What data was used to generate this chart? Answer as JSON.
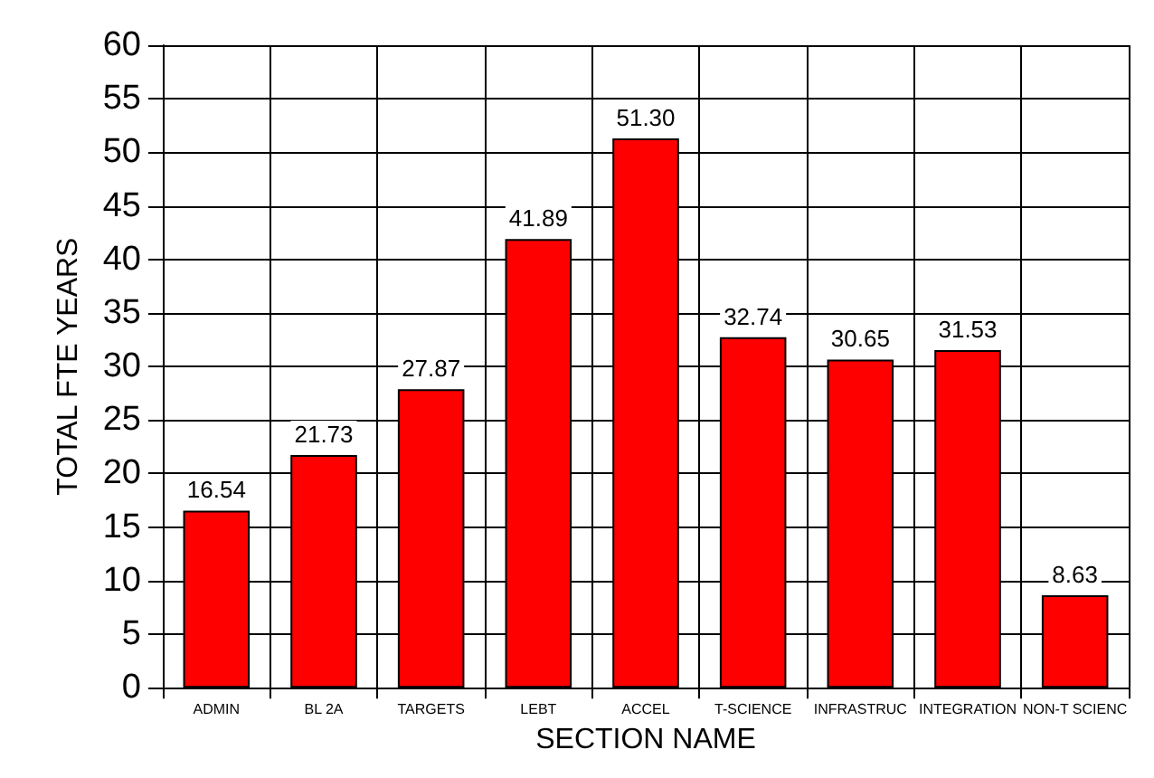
{
  "chart_data": {
    "type": "bar",
    "xlabel": "SECTION NAME",
    "ylabel": "TOTAL FTE YEARS",
    "categories": [
      "ADMIN",
      "BL 2A",
      "TARGETS",
      "LEBT",
      "ACCEL",
      "T-SCIENCE",
      "INFRASTRUC",
      "INTEGRATION",
      "NON-T SCIENC"
    ],
    "values": [
      16.54,
      21.73,
      27.87,
      41.89,
      51.3,
      32.74,
      30.65,
      31.53,
      8.63
    ],
    "value_labels": [
      "16.54",
      "21.73",
      "27.87",
      "41.89",
      "51.30",
      "32.74",
      "30.65",
      "31.53",
      "8.63"
    ],
    "color": "#ff0000",
    "ylim": [
      0,
      60
    ],
    "yticks": [
      0,
      5,
      10,
      15,
      20,
      25,
      30,
      35,
      40,
      45,
      50,
      55,
      60
    ],
    "grid": true
  }
}
